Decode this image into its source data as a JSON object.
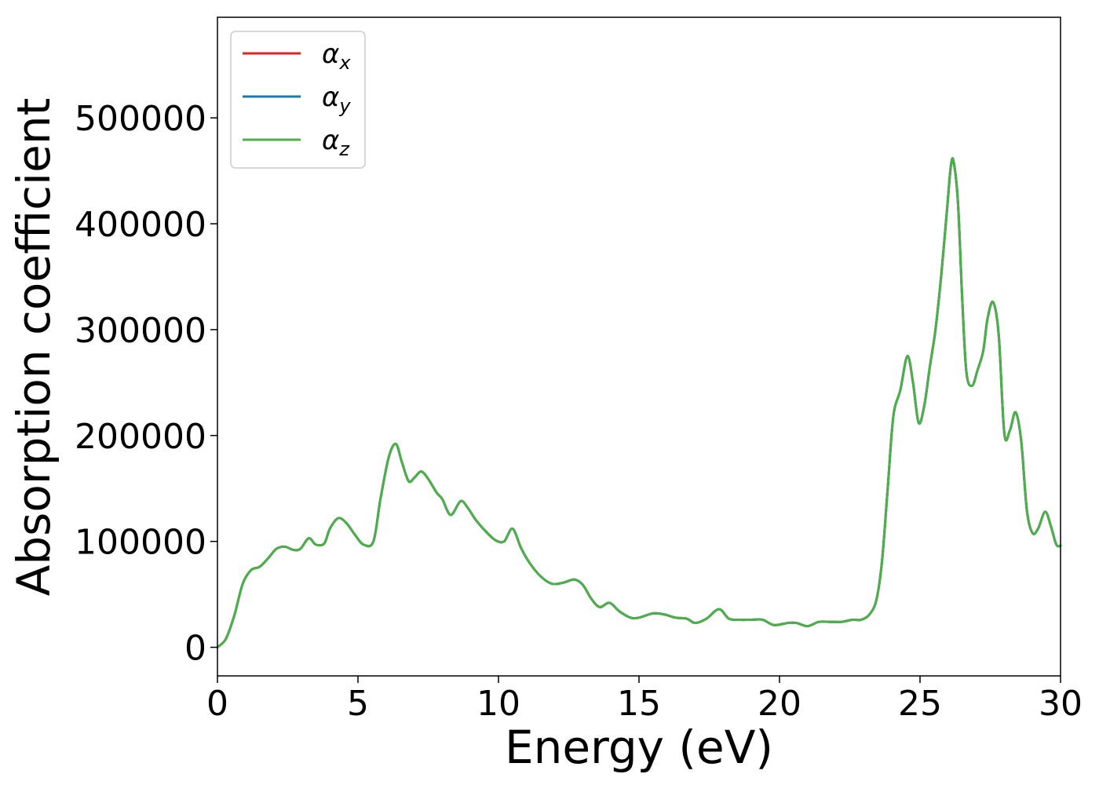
{
  "chart_data": {
    "type": "line",
    "title": "",
    "xlabel": "Energy (eV)",
    "ylabel": "Absorption coefficient",
    "xlim": [
      0,
      30
    ],
    "ylim": [
      -27000,
      595000
    ],
    "xticks": [
      0,
      5,
      10,
      15,
      20,
      25,
      30
    ],
    "yticks": [
      0,
      100000,
      200000,
      300000,
      400000,
      500000
    ],
    "grid": false,
    "legend_position": "top-left",
    "series": [
      {
        "name": "α",
        "sub": "x",
        "color": "#d62728"
      },
      {
        "name": "α",
        "sub": "y",
        "color": "#1f77b4"
      },
      {
        "name": "α",
        "sub": "z",
        "color": "#4daf4a"
      }
    ],
    "x": [
      0,
      0.3,
      0.6,
      0.9,
      1.2,
      1.5,
      1.8,
      2.1,
      2.4,
      2.7,
      2.95,
      3.25,
      3.5,
      3.8,
      4.0,
      4.3,
      4.6,
      4.9,
      5.2,
      5.55,
      5.8,
      6.1,
      6.35,
      6.55,
      6.8,
      7.0,
      7.25,
      7.5,
      7.8,
      8.0,
      8.3,
      8.65,
      8.9,
      9.2,
      9.6,
      9.9,
      10.2,
      10.5,
      10.8,
      11.1,
      11.5,
      11.9,
      12.3,
      12.7,
      13.0,
      13.3,
      13.6,
      13.95,
      14.3,
      14.7,
      15.0,
      15.5,
      15.9,
      16.3,
      16.7,
      17.0,
      17.4,
      17.85,
      18.2,
      18.6,
      19.0,
      19.4,
      19.8,
      20.3,
      20.6,
      21.0,
      21.4,
      21.8,
      22.2,
      22.6,
      22.9,
      23.2,
      23.45,
      23.65,
      23.85,
      24.05,
      24.3,
      24.55,
      24.75,
      24.95,
      25.15,
      25.35,
      25.55,
      25.75,
      25.95,
      26.1,
      26.2,
      26.35,
      26.5,
      26.65,
      26.85,
      27.05,
      27.25,
      27.4,
      27.6,
      27.8,
      28.0,
      28.2,
      28.4,
      28.6,
      28.8,
      29.0,
      29.2,
      29.45,
      29.65,
      29.85,
      30.0
    ],
    "values": [
      0,
      8000,
      30000,
      60000,
      73000,
      76000,
      84000,
      93000,
      95000,
      92000,
      93000,
      103000,
      97000,
      98000,
      112000,
      122000,
      117000,
      106000,
      97000,
      100000,
      140000,
      180000,
      192000,
      176000,
      157000,
      160000,
      166000,
      159000,
      146000,
      140000,
      125000,
      138000,
      132000,
      120000,
      108000,
      101000,
      100000,
      112000,
      94000,
      80000,
      67000,
      60000,
      61000,
      64000,
      59000,
      46000,
      38000,
      42000,
      34000,
      28000,
      28000,
      32000,
      31000,
      28000,
      27000,
      23000,
      27000,
      36000,
      27000,
      26000,
      26000,
      26000,
      21000,
      23000,
      23000,
      20000,
      24000,
      24000,
      24000,
      26000,
      26000,
      31000,
      45000,
      82000,
      150000,
      218000,
      243000,
      275000,
      250000,
      212000,
      228000,
      265000,
      300000,
      350000,
      410000,
      455000,
      458000,
      420000,
      330000,
      260000,
      247000,
      262000,
      280000,
      310000,
      326000,
      295000,
      202000,
      205000,
      222000,
      195000,
      130000,
      108000,
      112000,
      128000,
      115000,
      97000,
      96000
    ]
  }
}
